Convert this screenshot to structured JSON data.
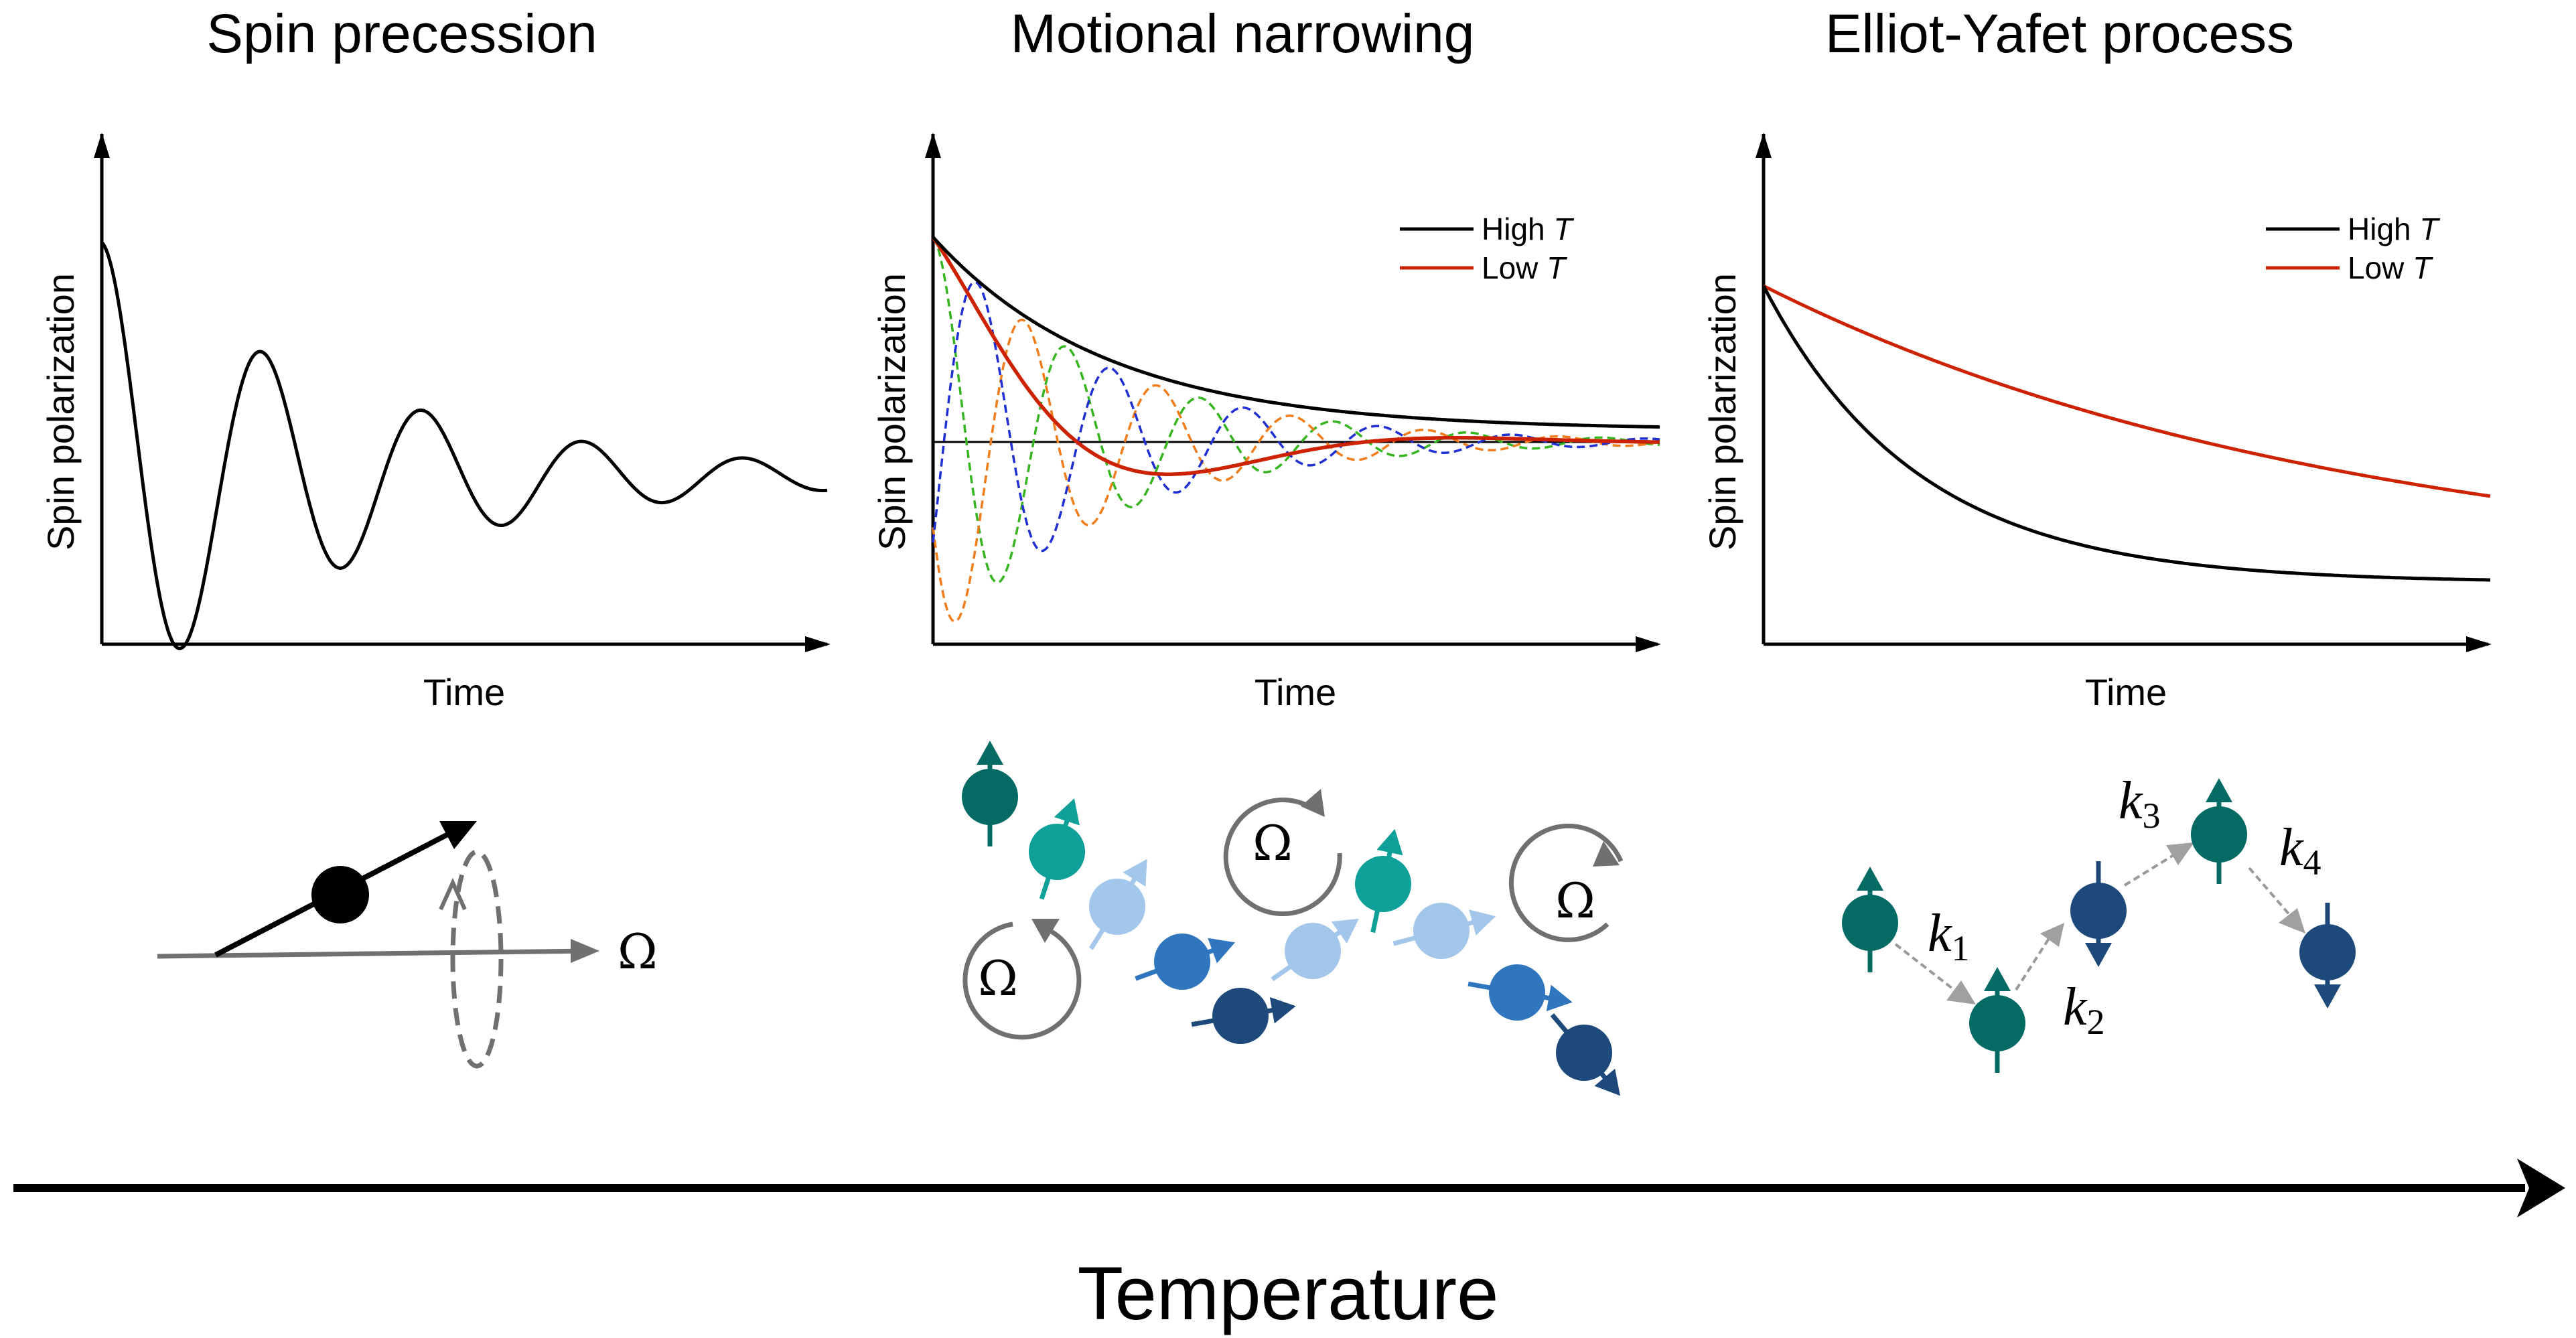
{
  "panels": [
    {
      "title": "Spin precession",
      "xlabel": "Time",
      "ylabel": "Spin polarization"
    },
    {
      "title": "Motional narrowing",
      "xlabel": "Time",
      "ylabel": "Spin polarization",
      "legend": [
        {
          "label": "High ",
          "italic": "T",
          "color": "#000000"
        },
        {
          "label": "Low ",
          "italic": "T",
          "color": "#cc2200"
        }
      ]
    },
    {
      "title": "Elliot-Yafet process",
      "xlabel": "Time",
      "ylabel": "Spin polarization",
      "legend": [
        {
          "label": "High ",
          "italic": "T",
          "color": "#000000"
        },
        {
          "label": "Low ",
          "italic": "T",
          "color": "#cc2200"
        }
      ]
    }
  ],
  "omega_symbol": "Ω",
  "k_labels": [
    {
      "var": "k",
      "sub": "1"
    },
    {
      "var": "k",
      "sub": "2"
    },
    {
      "var": "k",
      "sub": "3"
    },
    {
      "var": "k",
      "sub": "4"
    }
  ],
  "axis_label": "Temperature",
  "colors": {
    "dark_teal": "#046a64",
    "teal": "#10a09a",
    "light_blue": "#a3c7ea",
    "mid_blue": "#2f76bf",
    "navy": "#1d4a7b",
    "red": "#cc2200",
    "orange": "#f07d1c",
    "green": "#37b520",
    "blue_dash": "#1f2fd1",
    "gray": "#707070"
  }
}
